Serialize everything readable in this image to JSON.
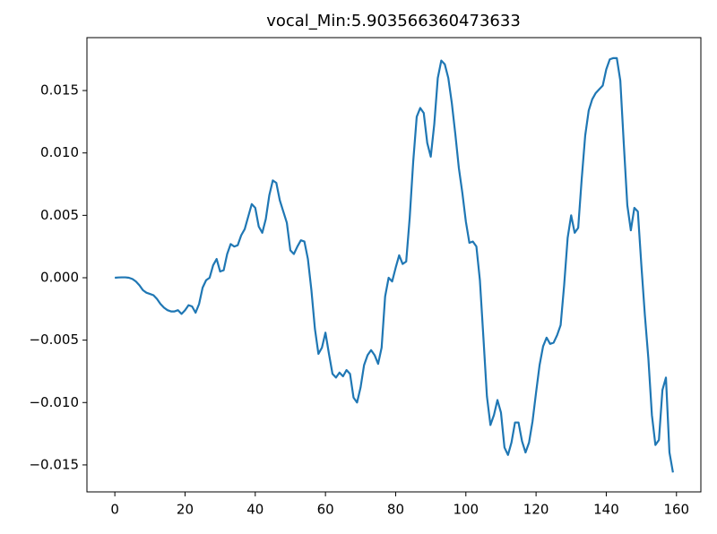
{
  "chart_data": {
    "type": "line",
    "title": "vocal_Min:5.903566360473633",
    "x": [
      0,
      1,
      2,
      3,
      4,
      5,
      6,
      7,
      8,
      9,
      10,
      11,
      12,
      13,
      14,
      15,
      16,
      17,
      18,
      19,
      20,
      21,
      22,
      23,
      24,
      25,
      26,
      27,
      28,
      29,
      30,
      31,
      32,
      33,
      34,
      35,
      36,
      37,
      38,
      39,
      40,
      41,
      42,
      43,
      44,
      45,
      46,
      47,
      48,
      49,
      50,
      51,
      52,
      53,
      54,
      55,
      56,
      57,
      58,
      59,
      60,
      61,
      62,
      63,
      64,
      65,
      66,
      67,
      68,
      69,
      70,
      71,
      72,
      73,
      74,
      75,
      76,
      77,
      78,
      79,
      80,
      81,
      82,
      83,
      84,
      85,
      86,
      87,
      88,
      89,
      90,
      91,
      92,
      93,
      94,
      95,
      96,
      97,
      98,
      99,
      100,
      101,
      102,
      103,
      104,
      105,
      106,
      107,
      108,
      109,
      110,
      111,
      112,
      113,
      114,
      115,
      116,
      117,
      118,
      119,
      120,
      121,
      122,
      123,
      124,
      125,
      126,
      127,
      128,
      129,
      130,
      131,
      132,
      133,
      134,
      135,
      136,
      137,
      138,
      139,
      140,
      141,
      142,
      143,
      144,
      145,
      146,
      147,
      148,
      149,
      150,
      151,
      152,
      153,
      154,
      155,
      156,
      157,
      158,
      159
    ],
    "series": [
      {
        "color": "#1f77b4",
        "values": [
          0,
          2e-05,
          3e-05,
          3e-05,
          0,
          -0.0001,
          -0.0003,
          -0.0006,
          -0.001,
          -0.0012,
          -0.0013,
          -0.0014,
          -0.0017,
          -0.0021,
          -0.0024,
          -0.0026,
          -0.0027,
          -0.0027,
          -0.0026,
          -0.0029,
          -0.0026,
          -0.0022,
          -0.0023,
          -0.0028,
          -0.0021,
          -0.0008,
          -0.0002,
          0,
          0.001,
          0.0015,
          0.0005,
          0.0006,
          0.0019,
          0.0027,
          0.0025,
          0.0026,
          0.0034,
          0.0039,
          0.0049,
          0.0059,
          0.0056,
          0.0041,
          0.0036,
          0.0047,
          0.0066,
          0.0078,
          0.0076,
          0.0062,
          0.0053,
          0.0044,
          0.0022,
          0.0019,
          0.0025,
          0.003,
          0.0029,
          0.0015,
          -0.001,
          -0.0041,
          -0.0061,
          -0.0056,
          -0.0044,
          -0.0061,
          -0.0077,
          -0.008,
          -0.0076,
          -0.0079,
          -0.0074,
          -0.0077,
          -0.0096,
          -0.01,
          -0.0088,
          -0.007,
          -0.0062,
          -0.0058,
          -0.0062,
          -0.0069,
          -0.0056,
          -0.0015,
          0,
          -0.0003,
          0.0008,
          0.0018,
          0.0011,
          0.0013,
          0.0048,
          0.0093,
          0.0129,
          0.0136,
          0.0132,
          0.0108,
          0.0097,
          0.0123,
          0.016,
          0.0174,
          0.0171,
          0.016,
          0.014,
          0.0115,
          0.0088,
          0.0068,
          0.0045,
          0.0028,
          0.0029,
          0.0025,
          -0.0002,
          -0.0048,
          -0.0095,
          -0.0118,
          -0.011,
          -0.0098,
          -0.0108,
          -0.0136,
          -0.0142,
          -0.0132,
          -0.0116,
          -0.0116,
          -0.0131,
          -0.014,
          -0.0132,
          -0.0115,
          -0.0092,
          -0.007,
          -0.0055,
          -0.0048,
          -0.0053,
          -0.0052,
          -0.0046,
          -0.0038,
          -0.0006,
          0.0032,
          0.005,
          0.0036,
          0.004,
          0.0079,
          0.0114,
          0.0134,
          0.0143,
          0.0148,
          0.0151,
          0.0154,
          0.0167,
          0.0175,
          0.0176,
          0.0176,
          0.0158,
          0.0107,
          0.0058,
          0.0038,
          0.0056,
          0.0053,
          0.001,
          -0.003,
          -0.0065,
          -0.011,
          -0.0134,
          -0.013,
          -0.009,
          -0.008,
          -0.014,
          -0.0156
        ]
      }
    ],
    "xlim": [
      -7.95,
      166.95
    ],
    "ylim": [
      -0.01716,
      0.01924
    ],
    "xticks": [
      0,
      20,
      40,
      60,
      80,
      100,
      120,
      140,
      160
    ],
    "yticks": [
      {
        "value": -0.015,
        "label": "−0.015"
      },
      {
        "value": -0.01,
        "label": "−0.010"
      },
      {
        "value": -0.005,
        "label": "−0.005"
      },
      {
        "value": 0,
        "label": "0.000"
      },
      0.005,
      {
        "value": 0.01,
        "label": "0.010"
      },
      0.015
    ],
    "grid": false
  }
}
